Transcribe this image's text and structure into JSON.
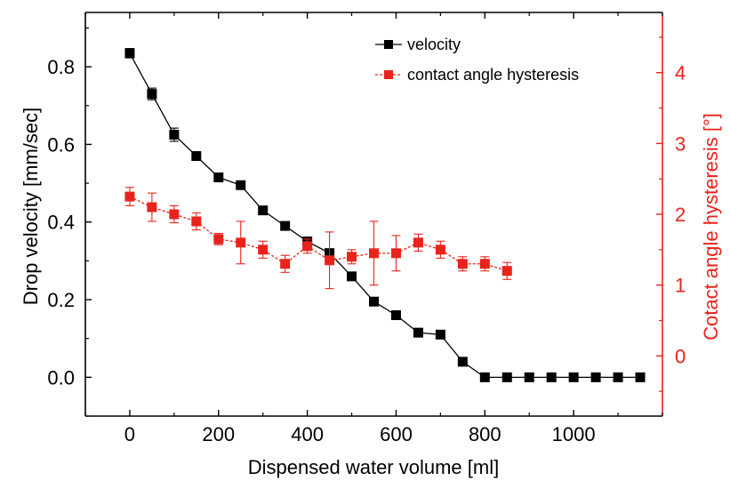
{
  "chart_data": {
    "type": "line",
    "xlabel": "Dispensed water volume [ml]",
    "ylabel_left": "Drop velocity [mm/sec]",
    "ylabel_right": "Cotact angle hysteresis [°]",
    "xlim": [
      -100,
      1200
    ],
    "ylim_left": [
      -0.1,
      0.94
    ],
    "ylim_right": [
      -0.85,
      4.85
    ],
    "x_ticks": [
      0,
      200,
      400,
      600,
      800,
      1000
    ],
    "y_left_ticks": [
      "0.0",
      "0.2",
      "0.4",
      "0.6",
      "0.8"
    ],
    "y_right_ticks": [
      "0",
      "1",
      "2",
      "3",
      "4"
    ],
    "legend_position": "top-right",
    "colors": {
      "velocity": "#000000",
      "hysteresis": "#e8231b",
      "right_axis": "#e8231b"
    },
    "series": [
      {
        "name": "velocity",
        "axis": "left",
        "x": [
          0,
          50,
          100,
          150,
          200,
          250,
          300,
          350,
          400,
          450,
          500,
          550,
          600,
          650,
          700,
          750,
          800,
          850,
          900,
          950,
          1000,
          1050,
          1100,
          1150
        ],
        "y": [
          0.835,
          0.73,
          0.625,
          0.57,
          0.515,
          0.495,
          0.43,
          0.39,
          0.35,
          0.32,
          0.26,
          0.195,
          0.16,
          0.115,
          0.11,
          0.04,
          0.0,
          0.0,
          0.0,
          0.0,
          0.0,
          0.0,
          0.0,
          0.0
        ],
        "err": [
          0.012,
          0.015,
          0.017,
          0.008,
          0.008,
          0.008,
          0.008,
          0.007,
          0.007,
          0.007,
          0.005,
          0.005,
          0.005,
          0.005,
          0.005,
          0.005,
          0.003,
          0.003,
          0.003,
          0.003,
          0.003,
          0.003,
          0.003,
          0.003
        ]
      },
      {
        "name": "contact angle hysteresis",
        "axis": "right",
        "x": [
          0,
          50,
          100,
          150,
          200,
          250,
          300,
          350,
          400,
          450,
          500,
          550,
          600,
          650,
          700,
          750,
          800,
          850
        ],
        "y": [
          2.25,
          2.1,
          2.0,
          1.9,
          1.65,
          1.6,
          1.5,
          1.3,
          1.55,
          1.35,
          1.4,
          1.45,
          1.45,
          1.6,
          1.5,
          1.3,
          1.3,
          1.2
        ],
        "err": [
          0.13,
          0.2,
          0.12,
          0.12,
          0.08,
          0.3,
          0.12,
          0.12,
          0.1,
          0.4,
          0.1,
          0.45,
          0.25,
          0.12,
          0.12,
          0.1,
          0.1,
          0.12
        ]
      }
    ]
  }
}
